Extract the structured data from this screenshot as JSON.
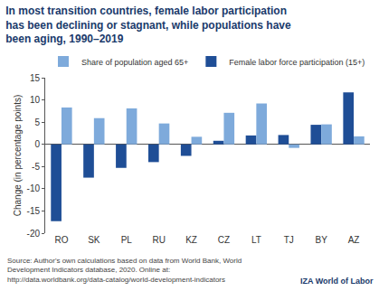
{
  "chart_data": {
    "type": "bar",
    "title": "In most transition countries, female labor participation has been declining or stagnant, while populations have been aging, 1990–2019",
    "ylabel": "Change (in percentage points)",
    "categories": [
      "RO",
      "SK",
      "PL",
      "RU",
      "KZ",
      "CZ",
      "LT",
      "TJ",
      "BY",
      "AZ"
    ],
    "series": [
      {
        "name": "Female labor force participation (15+)",
        "color": "#1f4e96",
        "values": [
          -17.3,
          -7.5,
          -5.3,
          -4.0,
          -2.6,
          0.8,
          2.0,
          2.1,
          4.4,
          11.7
        ]
      },
      {
        "name": "Share of population aged 65+",
        "color": "#7eaadb",
        "values": [
          8.3,
          5.9,
          8.1,
          4.7,
          1.7,
          7.1,
          9.2,
          -0.8,
          4.5,
          1.8
        ]
      }
    ],
    "ylim": [
      -20,
      15
    ],
    "yticks": [
      -20,
      -15,
      -10,
      -5,
      0,
      5,
      10,
      15
    ],
    "grid": false,
    "legend": "top right",
    "source": "Source: Author's own calculations based on data from World Bank, World Development Indicators database, 2020. Online at: http://data.worldbank.org/data-catalog/world-development-indicators",
    "logo": "IZA World of Labor"
  }
}
